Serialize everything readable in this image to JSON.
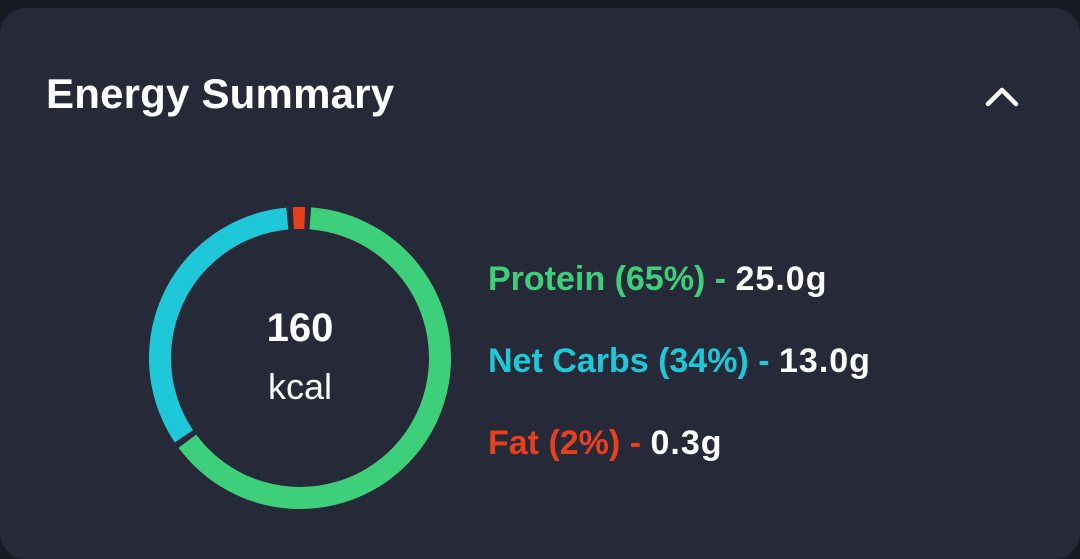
{
  "card": {
    "title": "Energy Summary",
    "collapse_icon": "chevron-up-icon"
  },
  "energy": {
    "value": "160",
    "unit": "kcal"
  },
  "macros": [
    {
      "name": "Protein",
      "percent_label": "(65%)",
      "separator": "-",
      "amount": "25.0g",
      "percent": 65,
      "color": "#3ecf7a"
    },
    {
      "name": "Net Carbs",
      "percent_label": "(34%)",
      "separator": "-",
      "amount": "13.0g",
      "percent": 34,
      "color": "#1ec8d8"
    },
    {
      "name": "Fat",
      "percent_label": "(2%)",
      "separator": "-",
      "amount": "0.3g",
      "percent": 2,
      "color": "#e8401c"
    }
  ],
  "colors": {
    "background": "#181a24",
    "card": "#262938",
    "protein": "#3ecf7a",
    "carbs": "#1ec8d8",
    "fat": "#e8401c"
  }
}
